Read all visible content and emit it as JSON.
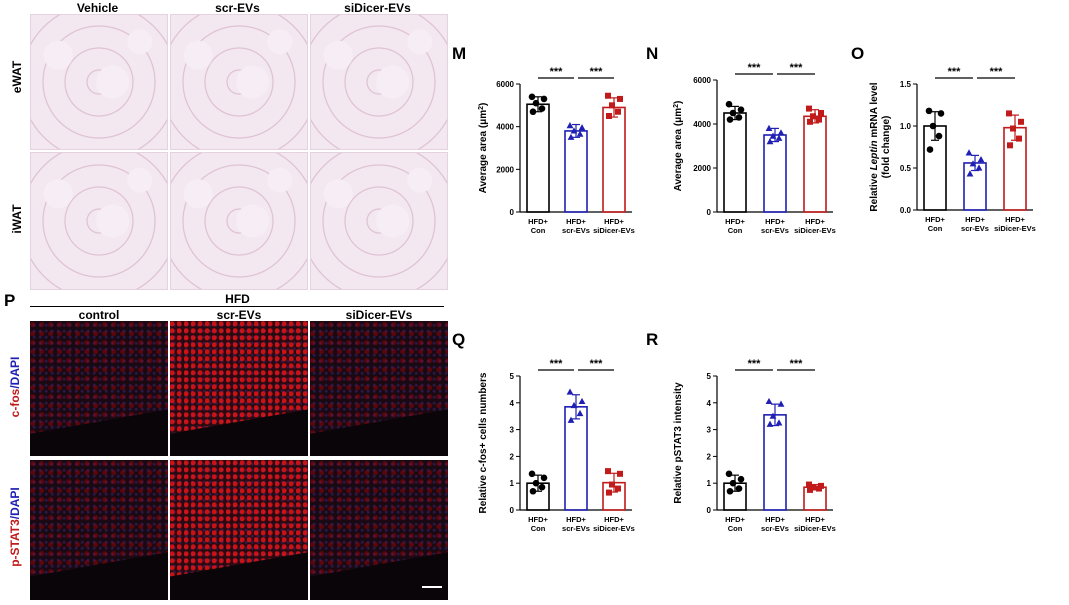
{
  "histology": {
    "columns": [
      "Vehicle",
      "scr-EVs",
      "siDicer-EVs"
    ],
    "rows": [
      "eWAT",
      "iWAT"
    ]
  },
  "panel_p": {
    "letter": "P",
    "group_label": "HFD",
    "columns": [
      "control",
      "scr-EVs",
      "siDicer-EVs"
    ],
    "row1_label_a": "c-fos",
    "row1_label_b": "/DAPI",
    "row2_label_a": "p-STAT3",
    "row2_label_b": "/DAPI"
  },
  "colors": {
    "black": "#000000",
    "blue": "#1f1fb3",
    "red": "#c01a1a"
  },
  "chart_data": [
    {
      "panel": "M",
      "type": "bar",
      "categories": [
        [
          "HFD+",
          "Con"
        ],
        [
          "HFD+",
          "scr-EVs"
        ],
        [
          "HFD+",
          "siDicer-EVs"
        ]
      ],
      "ylabel_parts": [
        "Average area (μm",
        "2",
        ")"
      ],
      "ylim": [
        0,
        6000
      ],
      "yticks": [
        0,
        2000,
        4000,
        6000
      ],
      "means": [
        5050,
        3800,
        4900
      ],
      "sd": [
        350,
        300,
        450
      ],
      "points": [
        [
          5400,
          5300,
          5100,
          4850,
          4700
        ],
        [
          4050,
          3950,
          3800,
          3650,
          3500
        ],
        [
          5450,
          5300,
          5000,
          4700,
          4500
        ]
      ],
      "significance": [
        "***",
        "***"
      ]
    },
    {
      "panel": "N",
      "type": "bar",
      "categories": [
        [
          "HFD+",
          "Con"
        ],
        [
          "HFD+",
          "scr-EVs"
        ],
        [
          "HFD+",
          "siDicer-EVs"
        ]
      ],
      "ylabel_parts": [
        "Average area (μm",
        "2",
        ")"
      ],
      "ylim": [
        0,
        6000
      ],
      "yticks": [
        0,
        2000,
        4000,
        6000
      ],
      "means": [
        4500,
        3500,
        4350
      ],
      "sd": [
        300,
        300,
        300
      ],
      "points": [
        [
          4900,
          4650,
          4500,
          4300,
          4200
        ],
        [
          3800,
          3600,
          3450,
          3350,
          3200
        ],
        [
          4700,
          4500,
          4350,
          4200,
          4100
        ]
      ],
      "significance": [
        "***",
        "***"
      ]
    },
    {
      "panel": "O",
      "type": "bar",
      "categories": [
        [
          "HFD+",
          "Con"
        ],
        [
          "HFD+",
          "scr-EVs"
        ],
        [
          "HFD+",
          "siDicer-EVs"
        ]
      ],
      "ylabel_lines": [
        [
          "Relative ",
          "Leptin",
          " mRNA level"
        ],
        [
          "(fold change)"
        ]
      ],
      "ylim": [
        0,
        1.5
      ],
      "yticks": [
        "0.0",
        "0.5",
        "1.0",
        "1.5"
      ],
      "means": [
        1.0,
        0.56,
        0.98
      ],
      "sd": [
        0.17,
        0.09,
        0.15
      ],
      "points": [
        [
          1.18,
          1.15,
          1.0,
          0.88,
          0.72
        ],
        [
          0.68,
          0.6,
          0.55,
          0.5,
          0.43
        ],
        [
          1.15,
          1.05,
          0.97,
          0.85,
          0.77
        ]
      ],
      "significance": [
        "***",
        "***"
      ]
    },
    {
      "panel": "Q",
      "type": "bar",
      "categories": [
        [
          "HFD+",
          "Con"
        ],
        [
          "HFD+",
          "scr-EVs"
        ],
        [
          "HFD+",
          "siDicer-EVs"
        ]
      ],
      "ylabel_lines": [
        [
          "Relative c-fos+ cells numbers"
        ]
      ],
      "ylim": [
        0,
        5
      ],
      "yticks": [
        "0",
        "1",
        "2",
        "3",
        "4",
        "5"
      ],
      "means": [
        1.0,
        3.85,
        1.02
      ],
      "sd": [
        0.3,
        0.45,
        0.35
      ],
      "points": [
        [
          1.35,
          1.2,
          1.0,
          0.85,
          0.7
        ],
        [
          4.4,
          4.05,
          3.9,
          3.6,
          3.35
        ],
        [
          1.45,
          1.35,
          0.95,
          0.8,
          0.65
        ]
      ],
      "significance": [
        "***",
        "***"
      ]
    },
    {
      "panel": "R",
      "type": "bar",
      "categories": [
        [
          "HFD+",
          "Con"
        ],
        [
          "HFD+",
          "scr-EVs"
        ],
        [
          "HFD+",
          "siDicer-EVs"
        ]
      ],
      "ylabel_lines": [
        [
          "Relative pSTAT3 intensity"
        ]
      ],
      "ylim": [
        0,
        5
      ],
      "yticks": [
        "0",
        "1",
        "2",
        "3",
        "4",
        "5"
      ],
      "means": [
        1.0,
        3.55,
        0.85
      ],
      "sd": [
        0.3,
        0.4,
        0.1
      ],
      "points": [
        [
          1.35,
          1.15,
          1.0,
          0.8,
          0.7
        ],
        [
          4.05,
          3.95,
          3.5,
          3.25,
          3.2
        ],
        [
          0.95,
          0.9,
          0.85,
          0.8,
          0.75
        ]
      ],
      "significance": [
        "***",
        "***"
      ]
    }
  ]
}
